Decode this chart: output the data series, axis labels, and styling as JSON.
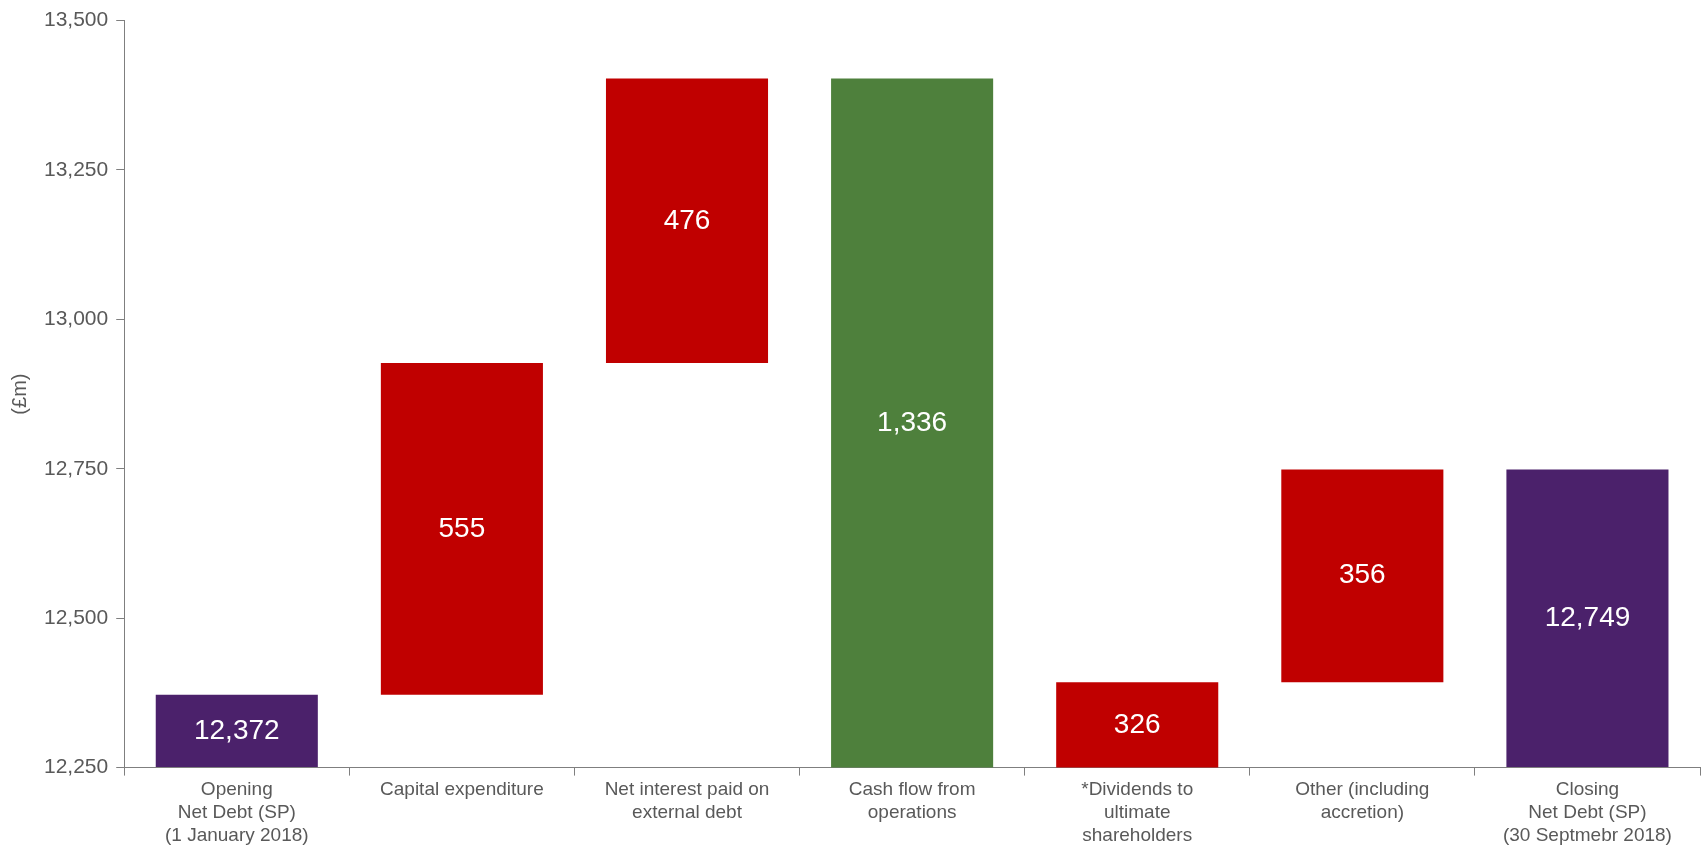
{
  "chart_data": {
    "type": "bar",
    "ylabel": "(£m)",
    "categories": [
      "Opening\nNet Debt (SP)\n(1 January 2018)",
      "Capital expenditure",
      "Net interest paid on\nexternal debt",
      "Cash flow from\noperations",
      "*Dividends to\nultimate\nshareholders",
      "Other (including\naccretion)",
      "Closing\nNet Debt (SP)\n(30 Septmebr 2018)"
    ],
    "values": [
      12372,
      555,
      476,
      -1336,
      326,
      356,
      12749
    ],
    "base": [
      null,
      12372,
      12927,
      13403,
      12067,
      12393,
      null
    ],
    "colors": [
      "#4b216b",
      "#c00000",
      "#c00000",
      "#4e803c",
      "#c00000",
      "#c00000",
      "#4b216b"
    ],
    "value_labels": [
      "12,372",
      "555",
      "476",
      "1,336",
      "326",
      "356",
      "12,749"
    ],
    "ylim": [
      12250,
      13500
    ],
    "yticks": [
      {
        "value": 12250,
        "label": "12,250"
      },
      {
        "value": 12500,
        "label": "12,500"
      },
      {
        "value": 12750,
        "label": "12,750"
      },
      {
        "value": 13000,
        "label": "13,000"
      },
      {
        "value": 13250,
        "label": "13,250"
      },
      {
        "value": 13500,
        "label": "13,500"
      }
    ],
    "grid": false,
    "legend": false
  }
}
